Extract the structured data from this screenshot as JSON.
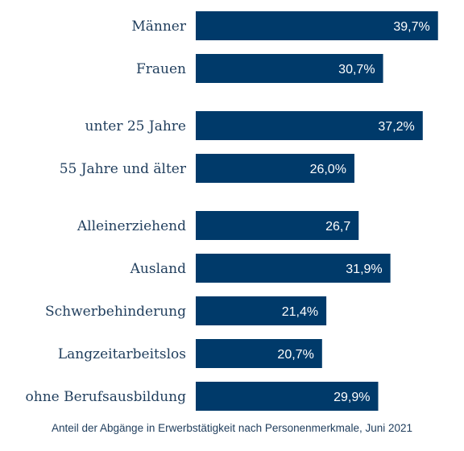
{
  "chart_data": {
    "type": "bar",
    "orientation": "horizontal",
    "categories": [
      "Männer",
      "Frauen",
      "unter 25 Jahre",
      "55 Jahre und älter",
      "Alleinerziehend",
      "Ausland",
      "Schwerbehinderung",
      "Langzeitarbeitslos",
      "ohne Berufsausbildung"
    ],
    "values": [
      39.7,
      30.7,
      37.2,
      26.0,
      26.7,
      31.9,
      21.4,
      20.7,
      29.9
    ],
    "value_labels": [
      "39,7%",
      "30,7%",
      "37,2%",
      "26,0%",
      "26,7",
      "31,9%",
      "21,4%",
      "20,7%",
      "29,9%"
    ],
    "groups": [
      [
        0,
        1
      ],
      [
        2,
        3
      ],
      [
        4,
        5,
        6,
        7,
        8
      ]
    ],
    "xlim": [
      0,
      40
    ],
    "title": "",
    "caption": "Anteil der Abgänge in Erwerbstätigkeit nach Personenmerkmale, Juni 2021",
    "bar_color": "#003a6a",
    "grid": false,
    "legend": "none"
  }
}
